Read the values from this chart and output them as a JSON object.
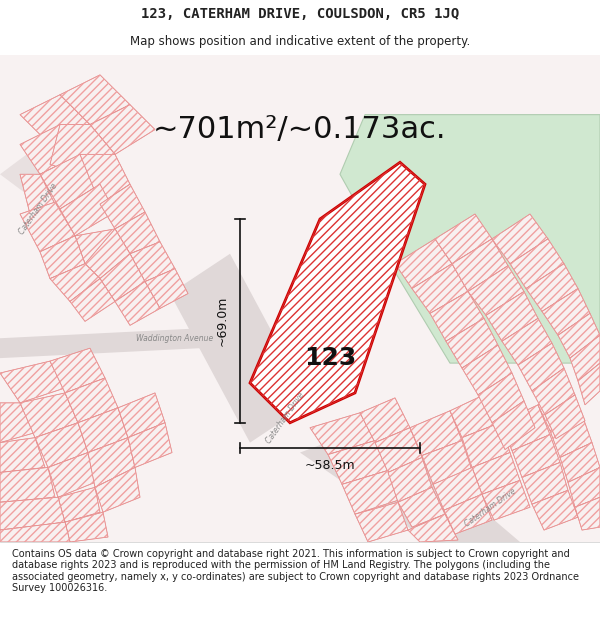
{
  "title": "123, CATERHAM DRIVE, COULSDON, CR5 1JQ",
  "subtitle": "Map shows position and indicative extent of the property.",
  "area_text": "~701m²/~0.173ac.",
  "width_label": "~58.5m",
  "height_label": "~69.0m",
  "property_number": "123",
  "footer_text": "Contains OS data © Crown copyright and database right 2021. This information is subject to Crown copyright and database rights 2023 and is reproduced with the permission of HM Land Registry. The polygons (including the associated geometry, namely x, y co-ordinates) are subject to Crown copyright and database rights 2023 Ordnance Survey 100026316.",
  "bg_color": "#ffffff",
  "map_bg": "#f5f0f0",
  "property_fill": "#ffffff",
  "property_hatch_color": "#e8b0b0",
  "property_border": "#cc0000",
  "neighbor_fill": "#f0f0f0",
  "neighbor_hatch_color": "#f0a0a0",
  "road_color": "#d0c0c0",
  "green_area_fill": "#d4e8d4",
  "title_fontsize": 10,
  "subtitle_fontsize": 8.5,
  "area_fontsize": 22,
  "label_fontsize": 9,
  "number_fontsize": 18,
  "footer_fontsize": 7
}
